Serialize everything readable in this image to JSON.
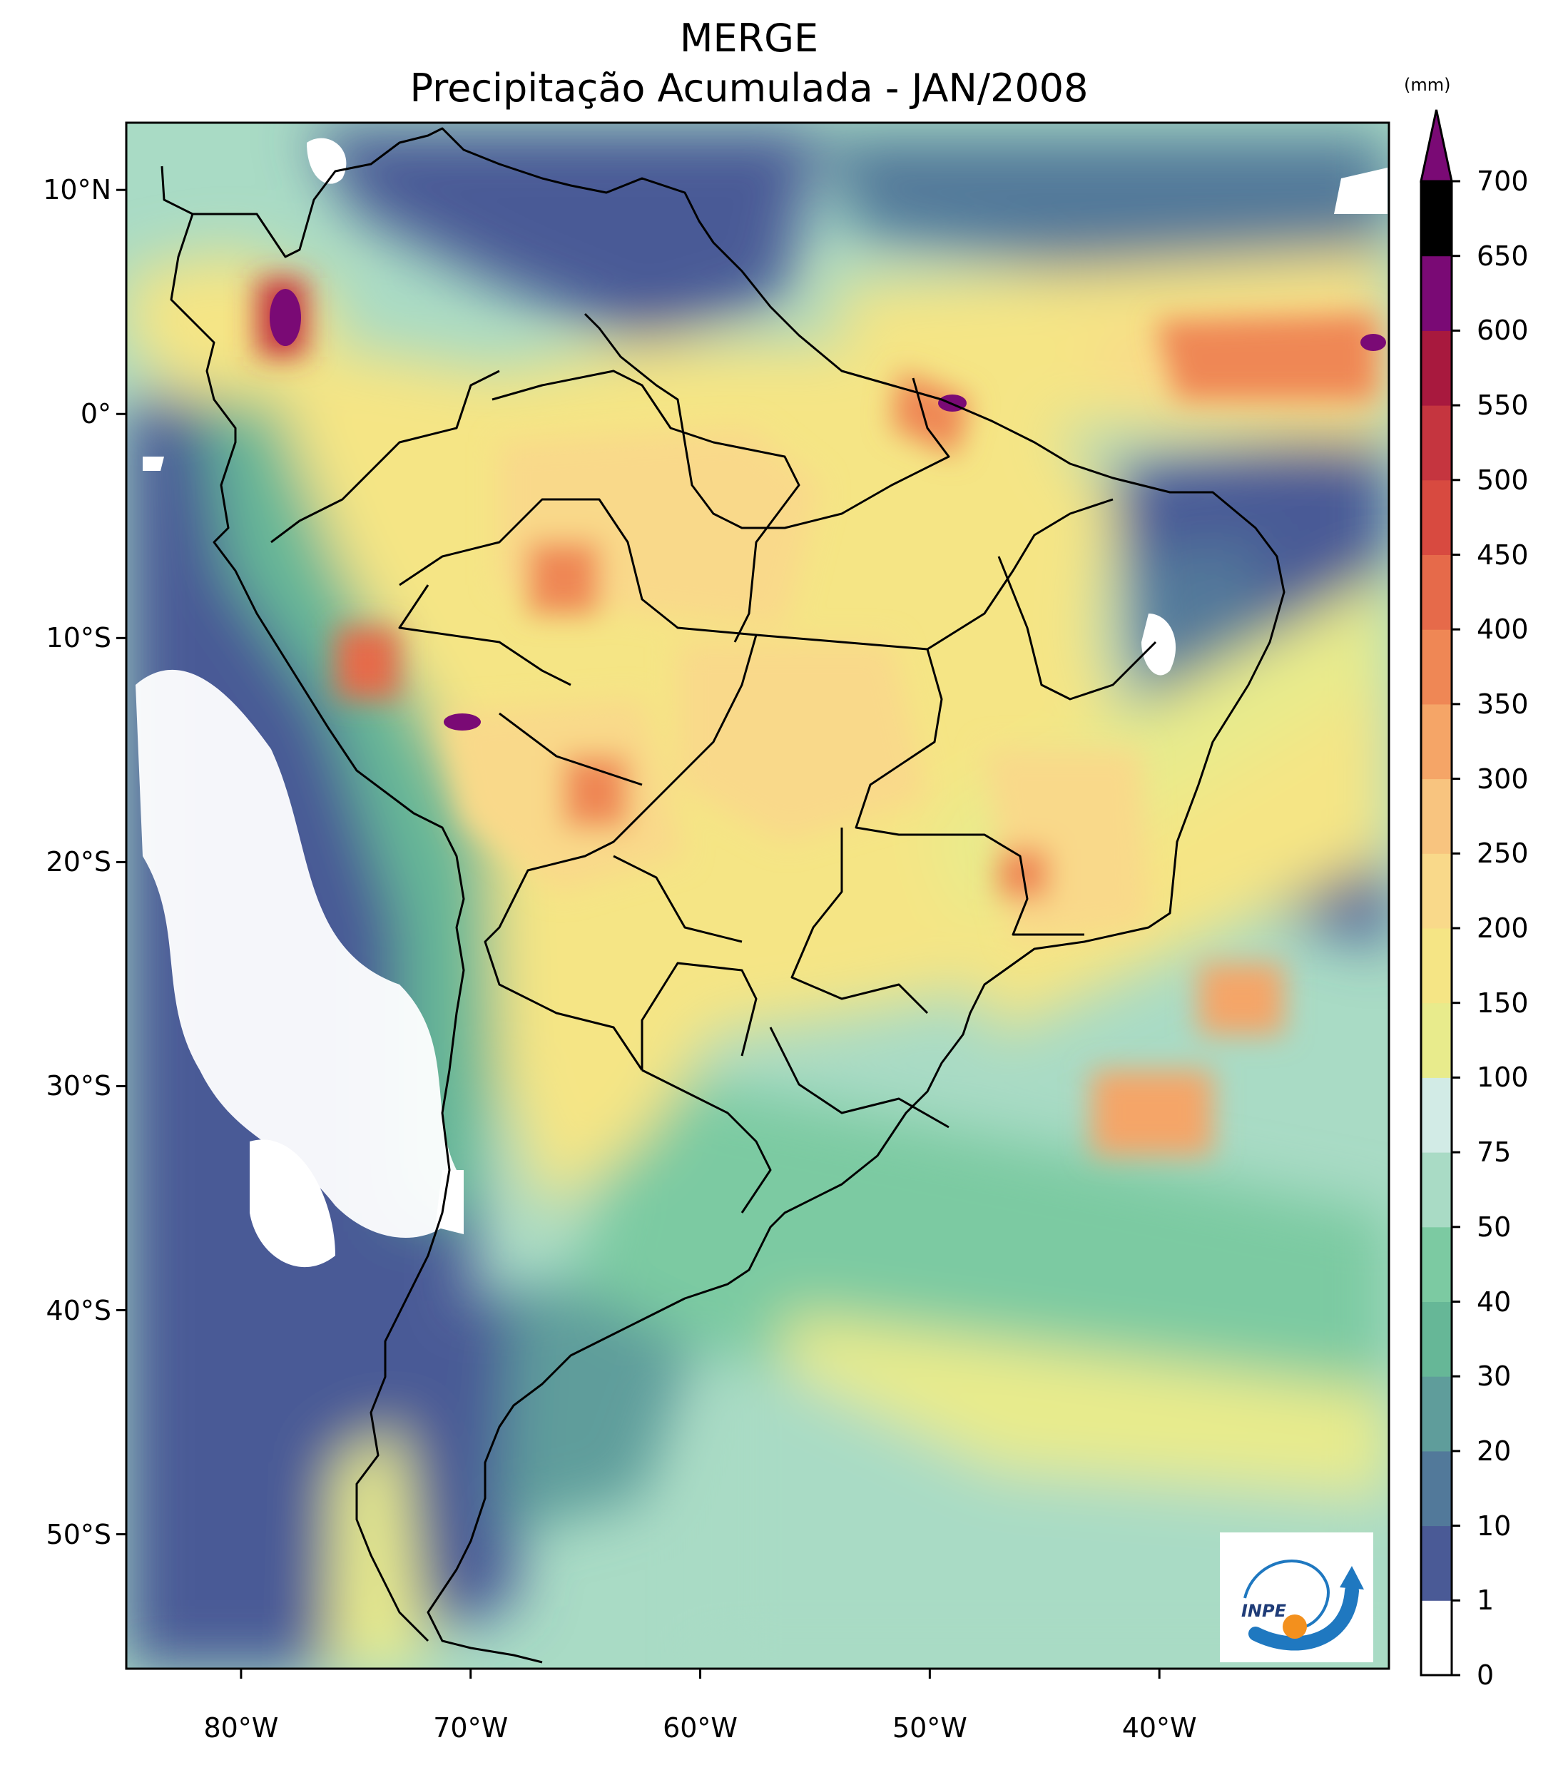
{
  "title": {
    "line1": "MERGE",
    "line2": "Precipitação Acumulada - JAN/2008"
  },
  "colorbar": {
    "units": "(mm)",
    "levels": [
      "0",
      "1",
      "10",
      "20",
      "30",
      "40",
      "50",
      "75",
      "100",
      "150",
      "200",
      "250",
      "300",
      "350",
      "400",
      "450",
      "500",
      "550",
      "600",
      "650",
      "700"
    ],
    "colors": [
      "#ffffff",
      "#4a5a96",
      "#52799a",
      "#5f9d9b",
      "#66b797",
      "#7ccaa2",
      "#a9dbc5",
      "#d2ebe6",
      "#e8eb8c",
      "#f5e585",
      "#f9d98a",
      "#f8c47f",
      "#f5a567",
      "#ef8755",
      "#e66a4a",
      "#d84a40",
      "#c5353f",
      "#a8193e",
      "#7a0a75"
    ],
    "extend": "max"
  },
  "axes": {
    "lat_labels": [
      "10°N",
      "0°",
      "10°S",
      "20°S",
      "30°S",
      "40°S",
      "50°S"
    ],
    "lon_labels": [
      "80°W",
      "70°W",
      "60°W",
      "50°W",
      "40°W"
    ],
    "lon_range": [
      -85,
      -30
    ],
    "lat_range": [
      -56,
      13
    ]
  },
  "logo": {
    "text": "INPE",
    "colors": {
      "blue": "#1f78c0",
      "orange": "#f3901d"
    }
  }
}
